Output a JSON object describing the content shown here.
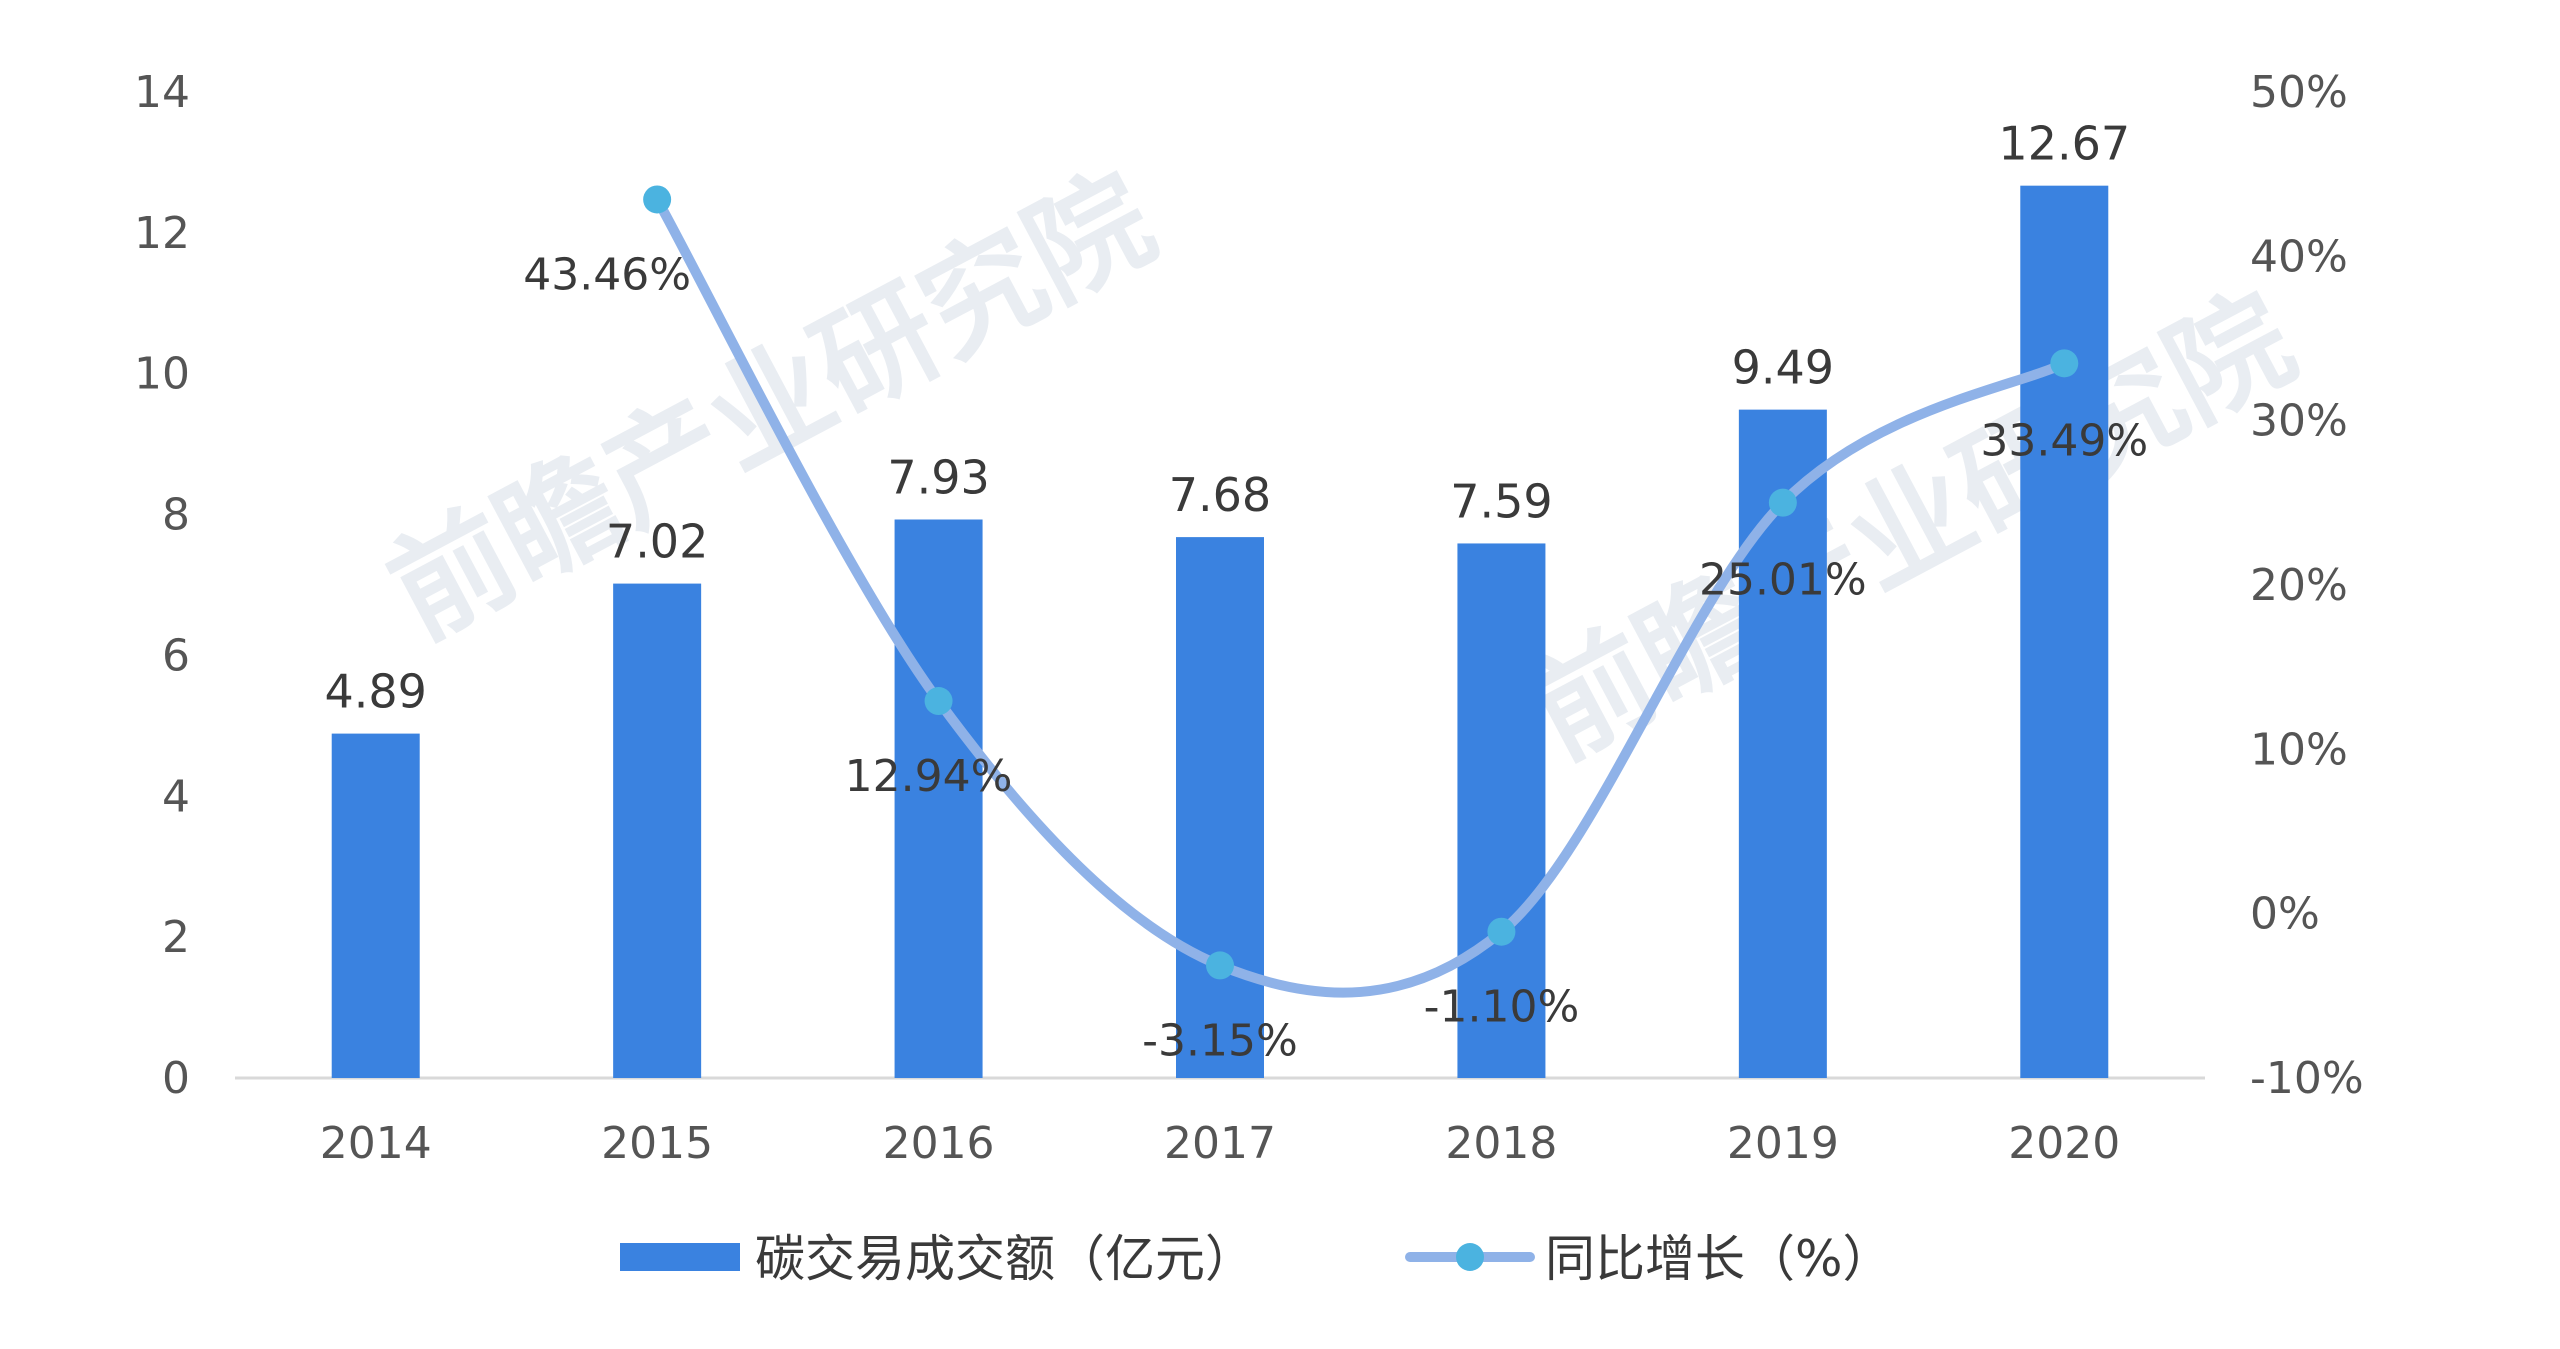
{
  "chart_data": {
    "type": "bar",
    "categories": [
      "2014",
      "2015",
      "2016",
      "2017",
      "2018",
      "2019",
      "2020"
    ],
    "series": [
      {
        "name": "碳交易成交额（亿元）",
        "type": "bar",
        "axis": "left",
        "color": "#3a82e0",
        "values": [
          4.89,
          7.02,
          7.93,
          7.68,
          7.59,
          9.49,
          12.67
        ],
        "labels": [
          "4.89",
          "7.02",
          "7.93",
          "7.68",
          "7.59",
          "9.49",
          "12.67"
        ]
      },
      {
        "name": "同比增长（%）",
        "type": "line",
        "axis": "right",
        "color": "#8fb2e8",
        "marker_color": "#4bb3e0",
        "values": [
          null,
          43.46,
          12.94,
          -3.15,
          -1.1,
          25.01,
          33.49
        ],
        "labels": [
          "",
          "43.46%",
          "12.94%",
          "-3.15%",
          "-1.10%",
          "25.01%",
          "33.49%"
        ]
      }
    ],
    "y_left": {
      "ylim": [
        0,
        14
      ],
      "ticks": [
        "0",
        "2",
        "4",
        "6",
        "8",
        "10",
        "12",
        "14"
      ]
    },
    "y_right": {
      "ylim": [
        -10,
        50
      ],
      "ticks": [
        "-10%",
        "0%",
        "10%",
        "20%",
        "30%",
        "40%",
        "50%"
      ]
    },
    "legend_position": "bottom-center",
    "grid": false,
    "watermark": "前瞻产业研究院"
  }
}
